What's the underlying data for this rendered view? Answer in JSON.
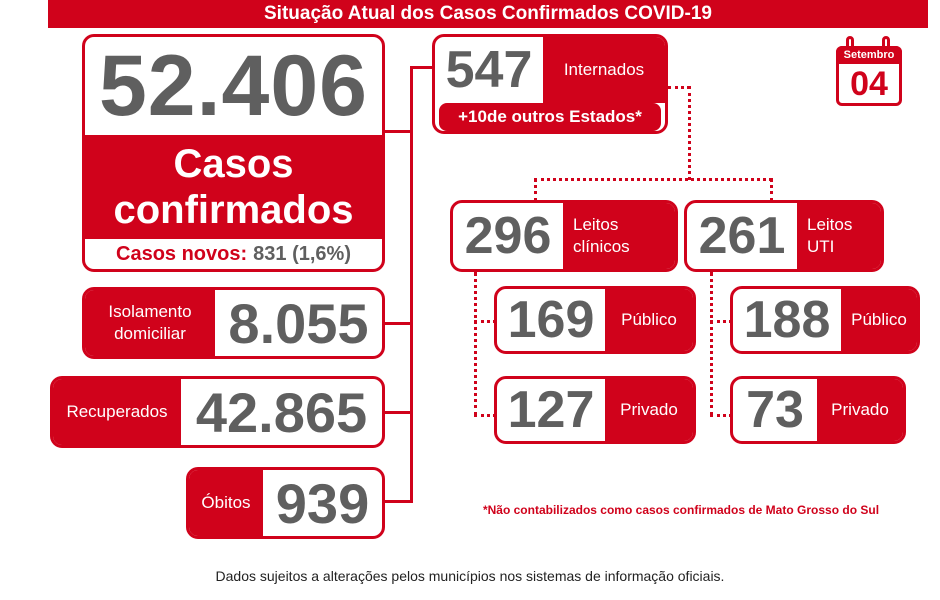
{
  "title": "Situação Atual dos Casos Confirmados COVID-19",
  "date": {
    "month": "Setembro",
    "day": "04"
  },
  "confirmed": {
    "value": "52.406",
    "label_line1": "Casos",
    "label_line2": "confirmados",
    "new_label": "Casos novos:",
    "new_value": "831 (1,6%)"
  },
  "isolation": {
    "label_line1": "Isolamento",
    "label_line2": "domiciliar",
    "value": "8.055"
  },
  "recovered": {
    "label": "Recuperados",
    "value": "42.865"
  },
  "deaths": {
    "label": "Óbitos",
    "value": "939"
  },
  "hospitalized": {
    "value": "547",
    "label": "Internados",
    "other_prefix": "+10",
    "other_suffix": "de outros Estados*"
  },
  "clinical": {
    "value": "296",
    "label_line1": "Leitos",
    "label_line2": "clínicos",
    "public_value": "169",
    "public_label": "Público",
    "private_value": "127",
    "private_label": "Privado"
  },
  "icu": {
    "value": "261",
    "label_line1": "Leitos",
    "label_line2": "UTI",
    "public_value": "188",
    "public_label": "Público",
    "private_value": "73",
    "private_label": "Privado"
  },
  "footnote": "*Não contabilizados como casos confirmados de Mato Grosso do Sul",
  "disclaimer": "Dados sujeitos a alterações pelos municípios nos sistemas de informação oficiais.",
  "colors": {
    "accent": "#d0021b",
    "number": "#5f5f5f"
  }
}
